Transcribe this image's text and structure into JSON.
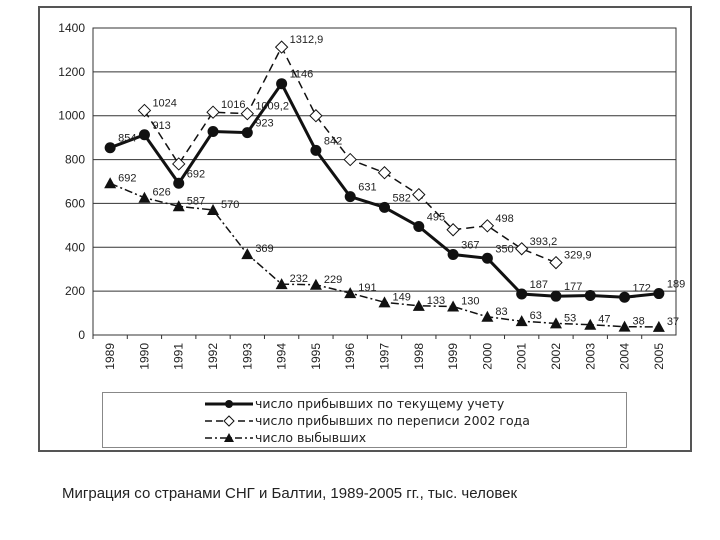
{
  "caption": "Миграция со странами СНГ и Балтии, 1989-2005 гг., тыс. человек",
  "chart_data": {
    "type": "line",
    "categories": [
      "1989",
      "1990",
      "1991",
      "1992",
      "1993",
      "1994",
      "1995",
      "1996",
      "1997",
      "1998",
      "1999",
      "2000",
      "2001",
      "2002",
      "2003",
      "2004",
      "2005"
    ],
    "ylim": [
      0,
      1400
    ],
    "yticks": [
      0,
      200,
      400,
      600,
      800,
      1000,
      1200,
      1400
    ],
    "grid": "horizontal",
    "legend_position": "bottom",
    "series": [
      {
        "name": "число прибывших по текущему учету",
        "style": "solid-circle",
        "color": "#111111",
        "values": [
          854,
          913,
          692,
          928,
          923,
          1146,
          842,
          631,
          582,
          495,
          367,
          350,
          187,
          177,
          180,
          172,
          189
        ],
        "labels": [
          "854",
          "913",
          "692",
          "",
          "923",
          "1146",
          "842",
          "631",
          "582",
          "495",
          "367",
          "350",
          "187",
          "177",
          "",
          "172",
          "189"
        ]
      },
      {
        "name": "число прибывших по переписи 2002 года",
        "style": "dashed-diamond",
        "color": "#111111",
        "values": [
          null,
          1024,
          780,
          1016,
          1009.2,
          1312.9,
          1000,
          800,
          740,
          640,
          480,
          498,
          393.2,
          329.9,
          null,
          null,
          null
        ],
        "labels": [
          "",
          "1024",
          "",
          "1016",
          "1009,2",
          "1312,9",
          "",
          "",
          "",
          "",
          "",
          "498",
          "393,2",
          "329,9",
          "",
          "",
          ""
        ]
      },
      {
        "name": "число выбывших",
        "style": "dashdot-triangle",
        "color": "#111111",
        "values": [
          692,
          626,
          587,
          570,
          369,
          232,
          229,
          191,
          149,
          133,
          130,
          83,
          63,
          53,
          47,
          38,
          37
        ],
        "labels": [
          "692",
          "626",
          "587",
          "570",
          "369",
          "232",
          "229",
          "191",
          "149",
          "133",
          "130",
          "83",
          "63",
          "53",
          "47",
          "38",
          "37"
        ]
      }
    ]
  }
}
